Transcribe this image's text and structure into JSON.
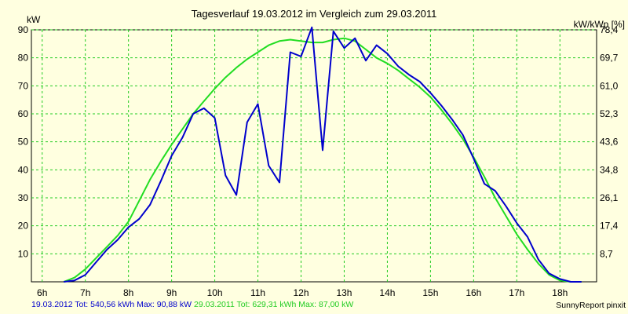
{
  "chart_data": {
    "type": "line",
    "title": "Tagesverlauf 19.03.2012 im Vergleich zum 29.03.2011",
    "ylabel_left": "kW",
    "ylabel_right": "kW/kWp [%]",
    "ylim": [
      0,
      90
    ],
    "xlim": [
      5.75,
      18.85
    ],
    "x_ticks": [
      "6h",
      "7h",
      "8h",
      "9h",
      "10h",
      "11h",
      "12h",
      "13h",
      "14h",
      "15h",
      "16h",
      "17h",
      "18h"
    ],
    "y_ticks_left": [
      "10",
      "20",
      "30",
      "40",
      "50",
      "60",
      "70",
      "80",
      "90"
    ],
    "y_ticks_right": [
      "8,7",
      "17,4",
      "26,1",
      "34,8",
      "43,6",
      "52,3",
      "61,0",
      "69,7",
      "78,4"
    ],
    "grid": true,
    "series": [
      {
        "name": "19.03.2012",
        "color": "#0000cc",
        "x": [
          6.5,
          6.75,
          7.0,
          7.25,
          7.5,
          7.75,
          8.0,
          8.25,
          8.5,
          8.75,
          9.0,
          9.25,
          9.5,
          9.75,
          10.0,
          10.25,
          10.5,
          10.75,
          11.0,
          11.25,
          11.5,
          11.75,
          12.0,
          12.25,
          12.5,
          12.75,
          13.0,
          13.25,
          13.5,
          13.75,
          14.0,
          14.25,
          14.5,
          14.75,
          15.0,
          15.25,
          15.5,
          15.75,
          16.0,
          16.25,
          16.5,
          16.75,
          17.0,
          17.25,
          17.5,
          17.75,
          18.0,
          18.25,
          18.5
        ],
        "y": [
          0.0,
          0.5,
          2.5,
          7.0,
          11.5,
          15.0,
          19.5,
          22.5,
          27.5,
          36.0,
          45.0,
          51.5,
          60.0,
          62.0,
          58.5,
          38.0,
          31.0,
          57.0,
          63.5,
          41.5,
          35.5,
          82.0,
          80.5,
          90.9,
          47.0,
          89.5,
          83.5,
          87.0,
          79.0,
          84.5,
          81.5,
          77.0,
          74.0,
          71.5,
          67.5,
          63.0,
          58.0,
          52.5,
          44.0,
          35.0,
          32.5,
          27.0,
          21.0,
          16.0,
          8.0,
          3.0,
          1.0,
          0.0,
          0.0
        ]
      },
      {
        "name": "29.03.2011",
        "color": "#22dd22",
        "x": [
          6.5,
          6.75,
          7.0,
          7.25,
          7.5,
          7.75,
          8.0,
          8.25,
          8.5,
          8.75,
          9.0,
          9.25,
          9.5,
          9.75,
          10.0,
          10.25,
          10.5,
          10.75,
          11.0,
          11.25,
          11.5,
          11.75,
          12.0,
          12.25,
          12.5,
          12.75,
          13.0,
          13.25,
          13.5,
          13.75,
          14.0,
          14.25,
          14.5,
          14.75,
          15.0,
          15.25,
          15.5,
          15.75,
          16.0,
          16.25,
          16.5,
          16.75,
          17.0,
          17.25,
          17.5,
          17.75,
          18.0,
          18.25,
          18.5
        ],
        "y": [
          0.0,
          1.5,
          4.5,
          8.5,
          12.5,
          16.5,
          21.5,
          29.0,
          36.5,
          43.0,
          49.0,
          54.5,
          60.0,
          64.5,
          69.0,
          73.0,
          76.5,
          79.5,
          82.0,
          84.5,
          86.0,
          86.5,
          86.0,
          85.5,
          85.5,
          86.5,
          87.0,
          86.0,
          83.0,
          80.0,
          78.0,
          75.5,
          72.5,
          69.5,
          66.0,
          61.5,
          56.5,
          51.0,
          44.5,
          37.5,
          30.0,
          23.5,
          17.0,
          11.5,
          6.5,
          2.5,
          0.5,
          0.0,
          0.0
        ]
      }
    ]
  },
  "footer": {
    "series1_label": "19.03.2012 Tot: 540,56 kWh Max: 90,88 kW",
    "series2_label": "29.03.2011 Tot: 629,31 kWh Max: 87,00 kW",
    "brand": "SunnyReport pinxit"
  }
}
